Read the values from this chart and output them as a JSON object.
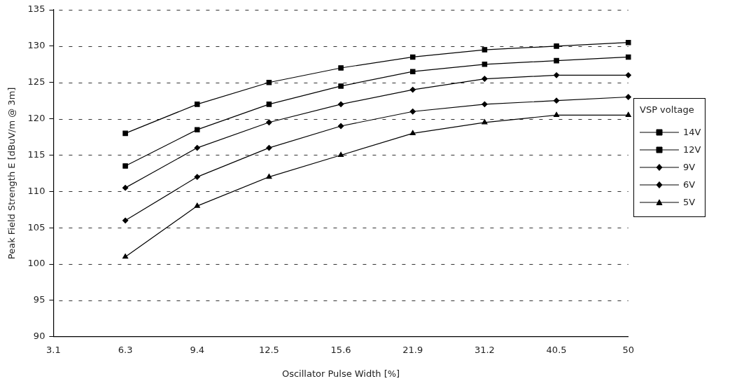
{
  "chart_data": {
    "type": "line",
    "xlabel": "Oscillator Pulse Width [%]",
    "ylabel": "Peak Field Strength E [dBuV/m @ 3m]",
    "legend_title": "VSP voltage",
    "legend": "right",
    "grid": "y",
    "line_style": "solid",
    "categories": [
      "3.1",
      "6.3",
      "9.4",
      "12.5",
      "15.6",
      "21.9",
      "31.2",
      "40.5",
      "50"
    ],
    "ylim": [
      90,
      135
    ],
    "yticks": [
      90,
      95,
      100,
      105,
      110,
      115,
      120,
      125,
      130,
      135
    ],
    "series": [
      {
        "name": "14V",
        "color": "#000000",
        "marker": "square",
        "values": [
          null,
          118,
          122,
          125,
          127,
          128.5,
          129.5,
          130,
          130.5
        ]
      },
      {
        "name": "12V",
        "color": "#000000",
        "marker": "square",
        "values": [
          null,
          113.5,
          118.5,
          122,
          124.5,
          126.5,
          127.5,
          128,
          128.5
        ]
      },
      {
        "name": "9V",
        "color": "#000000",
        "marker": "diamond",
        "values": [
          null,
          110.5,
          116,
          119.5,
          122,
          124,
          125.5,
          126,
          126
        ]
      },
      {
        "name": "6V",
        "color": "#000000",
        "marker": "diamond",
        "values": [
          null,
          106,
          112,
          116,
          119,
          121,
          122,
          122.5,
          123
        ]
      },
      {
        "name": "5V",
        "color": "#000000",
        "marker": "triangle",
        "values": [
          null,
          101,
          108,
          112,
          115,
          118,
          119.5,
          120.5,
          120.5
        ]
      }
    ]
  }
}
